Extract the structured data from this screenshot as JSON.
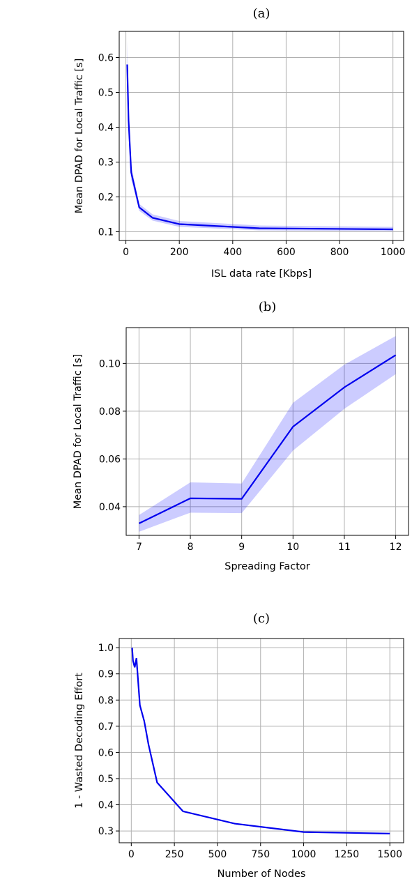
{
  "chart_data": [
    {
      "type": "line",
      "title": "(a)",
      "xlabel": "ISL data rate [Kbps]",
      "ylabel": "Mean DPAD for Local Traffic [s]",
      "xlim": [
        -25,
        1040
      ],
      "ylim": [
        0.075,
        0.675
      ],
      "xticks": [
        0,
        200,
        400,
        600,
        800,
        1000
      ],
      "yticks": [
        0.1,
        0.2,
        0.3,
        0.4,
        0.5,
        0.6
      ],
      "xtick_labels": [
        "0",
        "200",
        "400",
        "600",
        "800",
        "1000"
      ],
      "ytick_labels": [
        "0.1",
        "0.2",
        "0.3",
        "0.4",
        "0.5",
        "0.6"
      ],
      "grid": true,
      "x": [
        5,
        10,
        20,
        50,
        100,
        200,
        500,
        1000
      ],
      "series": [
        {
          "values": [
            0.58,
            0.42,
            0.27,
            0.17,
            0.14,
            0.122,
            0.11,
            0.107
          ],
          "lower": [
            0.52,
            0.38,
            0.25,
            0.16,
            0.132,
            0.114,
            0.104,
            0.102
          ],
          "upper": [
            0.65,
            0.46,
            0.29,
            0.18,
            0.15,
            0.131,
            0.118,
            0.114
          ],
          "color": "#0000ee"
        }
      ]
    },
    {
      "type": "line",
      "title": "(b)",
      "xlabel": "Spreading Factor",
      "ylabel": "Mean DPAD for Local Traffic [s]",
      "xlim": [
        6.75,
        12.25
      ],
      "ylim": [
        0.028,
        0.115
      ],
      "xticks": [
        7,
        8,
        9,
        10,
        11,
        12
      ],
      "yticks": [
        0.04,
        0.06,
        0.08,
        0.1
      ],
      "xtick_labels": [
        "7",
        "8",
        "9",
        "10",
        "11",
        "12"
      ],
      "ytick_labels": [
        "0.04",
        "0.06",
        "0.08",
        "0.10"
      ],
      "grid": true,
      "x": [
        7,
        8,
        9,
        10,
        11,
        12
      ],
      "series": [
        {
          "values": [
            0.033,
            0.0435,
            0.0433,
            0.0735,
            0.09,
            0.1035
          ],
          "lower": [
            0.0295,
            0.0375,
            0.0373,
            0.0635,
            0.081,
            0.0955
          ],
          "upper": [
            0.0365,
            0.0502,
            0.0497,
            0.0835,
            0.0995,
            0.1115
          ],
          "color": "#0000ee"
        }
      ]
    },
    {
      "type": "line",
      "title": "(c)",
      "xlabel": "Number of Nodes",
      "ylabel": "1 - Wasted Decoding Effort",
      "xlim": [
        -70,
        1580
      ],
      "ylim": [
        0.255,
        1.035
      ],
      "xticks": [
        0,
        250,
        500,
        750,
        1000,
        1250,
        1500
      ],
      "yticks": [
        0.3,
        0.4,
        0.5,
        0.6,
        0.7,
        0.8,
        0.9,
        1.0
      ],
      "xtick_labels": [
        "0",
        "250",
        "500",
        "750",
        "1000",
        "1250",
        "1500"
      ],
      "ytick_labels": [
        "0.3",
        "0.4",
        "0.5",
        "0.6",
        "0.7",
        "0.8",
        "0.9",
        "1.0"
      ],
      "grid": true,
      "x": [
        5,
        10,
        20,
        30,
        50,
        75,
        100,
        150,
        300,
        600,
        1000,
        1500
      ],
      "series": [
        {
          "values": [
            1.0,
            0.95,
            0.925,
            0.96,
            0.78,
            0.72,
            0.63,
            0.485,
            0.375,
            0.328,
            0.296,
            0.29
          ],
          "color": "#0000ee"
        }
      ]
    }
  ]
}
